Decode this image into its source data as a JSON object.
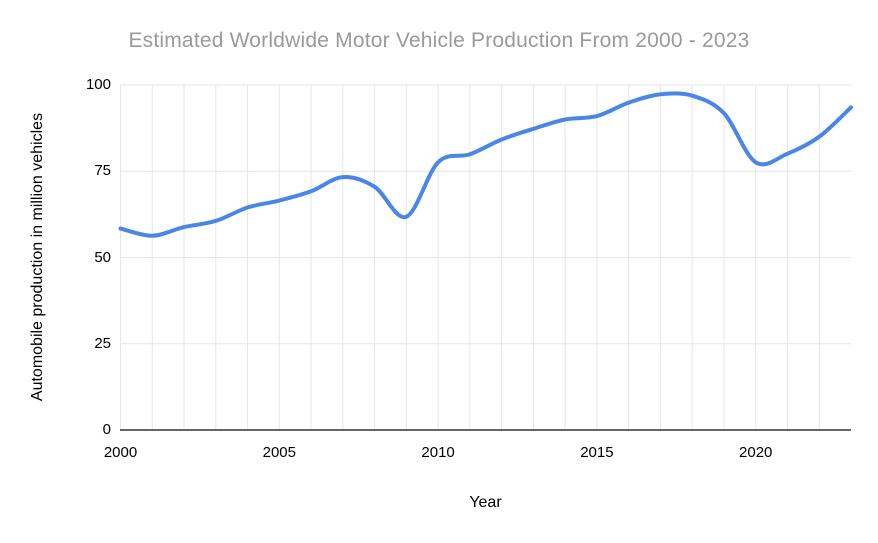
{
  "chart_data": {
    "type": "line",
    "title": "Estimated Worldwide Motor Vehicle Production From 2000 - 2023",
    "xlabel": "Year",
    "ylabel": "Automobile production in million vehicles",
    "x": [
      2000,
      2001,
      2002,
      2003,
      2004,
      2005,
      2006,
      2007,
      2008,
      2009,
      2010,
      2011,
      2012,
      2013,
      2014,
      2015,
      2016,
      2017,
      2018,
      2019,
      2020,
      2021,
      2022,
      2023
    ],
    "values": [
      58.4,
      56.3,
      58.8,
      60.6,
      64.5,
      66.5,
      69.2,
      73.3,
      70.5,
      61.8,
      77.6,
      79.9,
      84.2,
      87.3,
      90.0,
      91.0,
      94.9,
      97.3,
      96.9,
      91.8,
      77.6,
      80.1,
      85.0,
      93.5
    ],
    "xlim": [
      2000,
      2023
    ],
    "ylim": [
      0,
      100
    ],
    "x_ticks": [
      2000,
      2005,
      2010,
      2015,
      2020
    ],
    "y_ticks": [
      0,
      25,
      50,
      75,
      100
    ],
    "smooth": true,
    "grid": true,
    "legend": "none",
    "colors": {
      "line": "#4a86e8",
      "title_text": "#9a9a9a",
      "axis_text": "#000000",
      "gridline": "#e6e6e6",
      "axis_line": "#333333"
    },
    "line_width": 4
  }
}
